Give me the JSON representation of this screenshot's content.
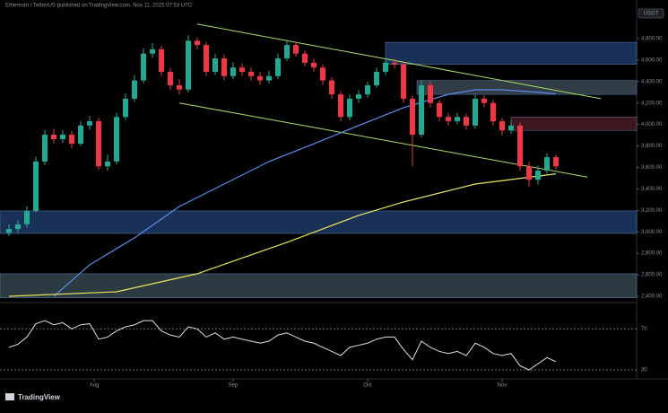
{
  "chart_data": {
    "type": "candlestick",
    "title": "Ethereum / TetherUS published on TradingView.com, Nov 11, 2025 07:53 UTC",
    "currency_button": "USDT",
    "brand": "TradingView",
    "xlim": [
      -1,
      70
    ],
    "ylim": [
      2400,
      4950
    ],
    "yticks": [
      {
        "value": 2400,
        "label": "2,400.00"
      },
      {
        "value": 2600,
        "label": "2,600.00"
      },
      {
        "value": 2800,
        "label": "2,800.00"
      },
      {
        "value": 3000,
        "label": "3,000.00"
      },
      {
        "value": 3200,
        "label": "3,200.00"
      },
      {
        "value": 3400,
        "label": "3,400.00"
      },
      {
        "value": 3600,
        "label": "3,600.00"
      },
      {
        "value": 3800,
        "label": "3,800.00"
      },
      {
        "value": 4000,
        "label": "4,000.00"
      },
      {
        "value": 4200,
        "label": "4,200.00"
      },
      {
        "value": 4400,
        "label": "4,400.00"
      },
      {
        "value": 4600,
        "label": "4,600.00"
      },
      {
        "value": 4800,
        "label": "4,800.00"
      }
    ],
    "xticks": [
      {
        "value": 9.5,
        "label": "Aug"
      },
      {
        "value": 25,
        "label": "Sep"
      },
      {
        "value": 40,
        "label": "Oct"
      },
      {
        "value": 55,
        "label": "Nov"
      }
    ],
    "up_color": "#22ab94",
    "down_color": "#f23645",
    "open": [
      2990,
      3027,
      3070,
      3195,
      3655,
      3905,
      3863,
      3905,
      3820,
      3990,
      4030,
      3610,
      3655,
      4070,
      4240,
      4410,
      4660,
      4700,
      4490,
      4365,
      4325,
      4780,
      4740,
      4490,
      4615,
      4450,
      4530,
      4490,
      4450,
      4410,
      4450,
      4615,
      4740,
      4660,
      4575,
      4530,
      4410,
      4280,
      4070,
      4240,
      4280,
      4365,
      4490,
      4575,
      4560,
      4240,
      3905,
      4365,
      4200,
      4070,
      4030,
      4070,
      3990,
      4240,
      4200,
      4030,
      3945,
      3990,
      3610,
      3485,
      3570,
      3695
    ],
    "high": [
      3070,
      3110,
      3240,
      3700,
      3950,
      3960,
      3950,
      3940,
      4030,
      4080,
      4060,
      3720,
      4110,
      4290,
      4460,
      4710,
      4760,
      4730,
      4530,
      4420,
      4830,
      4810,
      4770,
      4660,
      4650,
      4580,
      4570,
      4530,
      4490,
      4500,
      4660,
      4790,
      4770,
      4690,
      4610,
      4560,
      4440,
      4310,
      4280,
      4320,
      4400,
      4530,
      4620,
      4610,
      4590,
      4270,
      4410,
      4400,
      4230,
      4110,
      4110,
      4100,
      4280,
      4270,
      4230,
      4060,
      4040,
      4020,
      3650,
      3620,
      3730,
      3720
    ],
    "low": [
      2960,
      2990,
      3040,
      3180,
      3620,
      3820,
      3830,
      3780,
      3800,
      3950,
      3580,
      3570,
      3630,
      4040,
      4210,
      4380,
      4620,
      4450,
      4320,
      4280,
      4300,
      4700,
      4450,
      4460,
      4410,
      4420,
      4450,
      4410,
      4370,
      4380,
      4420,
      4590,
      4630,
      4540,
      4490,
      4370,
      4240,
      4030,
      4040,
      4200,
      4250,
      4340,
      4460,
      4520,
      4200,
      3610,
      3880,
      4160,
      4030,
      3990,
      4000,
      3950,
      3960,
      4160,
      3990,
      3900,
      3910,
      3570,
      3420,
      3440,
      3540,
      3580
    ],
    "close": [
      3027,
      3070,
      3195,
      3655,
      3905,
      3863,
      3905,
      3820,
      3990,
      4030,
      3610,
      3655,
      4070,
      4240,
      4410,
      4660,
      4700,
      4490,
      4365,
      4325,
      4780,
      4740,
      4490,
      4615,
      4450,
      4530,
      4490,
      4450,
      4410,
      4450,
      4615,
      4740,
      4660,
      4575,
      4530,
      4410,
      4280,
      4070,
      4240,
      4280,
      4365,
      4490,
      4575,
      4560,
      4240,
      3905,
      4365,
      4200,
      4070,
      4030,
      4070,
      3990,
      4240,
      4200,
      4030,
      3945,
      3990,
      3610,
      3485,
      3570,
      3695,
      3610
    ],
    "lines": [
      {
        "color": "#5b8dee",
        "x": [
          5,
          9,
          14,
          19,
          24,
          29,
          34,
          39,
          44,
          49,
          52,
          55,
          59,
          61
        ],
        "values": [
          2400,
          2693,
          2944,
          3236,
          3445,
          3655,
          3820,
          3990,
          4156,
          4280,
          4323,
          4323,
          4300,
          4285
        ]
      },
      {
        "color": "#e6e35a",
        "x": [
          0,
          12,
          21,
          31,
          39,
          44,
          52,
          61
        ],
        "values": [
          2400,
          2442,
          2610,
          2902,
          3153,
          3278,
          3445,
          3540
        ]
      }
    ],
    "channels": [
      {
        "color": "#a8e063",
        "x": [
          21,
          66
        ],
        "values": [
          4935,
          4240
        ]
      },
      {
        "color": "#a8e063",
        "x": [
          19,
          64.5
        ],
        "values": [
          4200,
          3510
        ]
      }
    ],
    "zones": [
      {
        "color": "#1e3a66",
        "x": [
          42,
          70
        ],
        "range": [
          4560,
          4765
        ]
      },
      {
        "color": "#3a4654",
        "x": [
          45.5,
          70
        ],
        "range": [
          4280,
          4410
        ]
      },
      {
        "color": "#4a1a22",
        "x": [
          56,
          70
        ],
        "range": [
          3945,
          4070
        ]
      },
      {
        "color": "#1e3a66",
        "x": [
          -1,
          70
        ],
        "range": [
          2985,
          3195
        ]
      },
      {
        "color": "#34454c",
        "x": [
          -1,
          70
        ],
        "range": [
          2385,
          2610
        ]
      }
    ],
    "rsi": {
      "ylim": [
        23,
        93
      ],
      "yticks": [
        30,
        70
      ],
      "values": [
        52,
        55,
        62,
        75,
        78,
        74,
        76,
        70,
        74,
        75,
        60,
        62,
        68,
        72,
        74,
        78,
        78,
        68,
        64,
        62,
        72,
        70,
        62,
        66,
        60,
        62,
        60,
        58,
        56,
        58,
        64,
        66,
        62,
        58,
        56,
        52,
        48,
        44,
        52,
        54,
        56,
        60,
        62,
        62,
        50,
        40,
        58,
        52,
        48,
        46,
        48,
        44,
        56,
        52,
        46,
        44,
        46,
        34,
        30,
        36,
        42,
        38
      ]
    }
  }
}
